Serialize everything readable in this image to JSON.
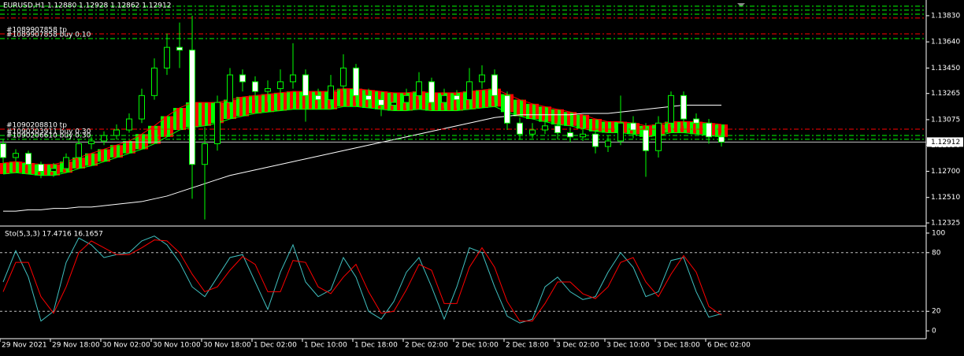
{
  "chart_data": [
    {
      "type": "candlestick",
      "title": "EURUSD,H1 1.12880 1.12928 1.12862 1.12912",
      "categories": [
        "29 Nov 2021",
        null,
        null,
        null,
        "29 Nov 18:00",
        null,
        null,
        null,
        "30 Nov 02:00",
        null,
        null,
        null,
        "30 Nov 10:00",
        null,
        null,
        null,
        "30 Nov 18:00",
        null,
        null,
        null,
        "1 Dec 02:00",
        null,
        null,
        null,
        "1 Dec 10:00",
        null,
        null,
        null,
        "1 Dec 18:00",
        null,
        null,
        null,
        "2 Dec 02:00",
        null,
        null,
        null,
        "2 Dec 10:00",
        null,
        null,
        null,
        "2 Dec 18:00",
        null,
        null,
        null,
        "3 Dec 02:00",
        null,
        null,
        null,
        "3 Dec 10:00",
        null,
        null,
        null,
        "3 Dec 18:00",
        null,
        null,
        null,
        "6 Dec 02:00",
        null
      ],
      "open": [
        1.129,
        1.128,
        1.1283,
        1.1275,
        1.127,
        1.1272,
        1.128,
        1.129,
        1.1292,
        1.1296,
        1.13,
        1.1308,
        1.1325,
        1.1345,
        1.136,
        1.1358,
        1.1275,
        1.129,
        1.132,
        1.134,
        1.1335,
        1.1328,
        1.133,
        1.1335,
        1.134,
        1.1325,
        1.1322,
        1.1332,
        1.1345,
        1.1325,
        1.1322,
        1.1318,
        1.132,
        1.1325,
        1.1335,
        1.132,
        1.1325,
        1.1322,
        1.1335,
        1.134,
        1.1325,
        1.1305,
        1.1297,
        1.13,
        1.1303,
        1.1298,
        1.1295,
        1.1297,
        1.1288,
        1.1292,
        1.1305,
        1.13,
        1.1285,
        1.1305,
        1.1325,
        1.1308,
        1.1305,
        1.1295
      ],
      "high": [
        1.1293,
        1.1286,
        1.1285,
        1.1277,
        1.1276,
        1.1283,
        1.1293,
        1.1295,
        1.1299,
        1.1304,
        1.1312,
        1.133,
        1.1352,
        1.137,
        1.1378,
        1.1383,
        1.1302,
        1.1325,
        1.1345,
        1.1344,
        1.1339,
        1.1336,
        1.1344,
        1.1363,
        1.1344,
        1.133,
        1.134,
        1.1355,
        1.1348,
        1.133,
        1.1326,
        1.1327,
        1.133,
        1.1342,
        1.1338,
        1.133,
        1.1329,
        1.1345,
        1.1347,
        1.1344,
        1.1328,
        1.1309,
        1.1305,
        1.1308,
        1.1306,
        1.1302,
        1.1301,
        1.13,
        1.1296,
        1.1325,
        1.131,
        1.1305,
        1.131,
        1.1328,
        1.1328,
        1.1312,
        1.1308,
        1.1298
      ],
      "low": [
        1.1276,
        1.1277,
        1.1268,
        1.1265,
        1.1266,
        1.127,
        1.1278,
        1.1286,
        1.1289,
        1.1293,
        1.1298,
        1.1305,
        1.1322,
        1.134,
        1.1345,
        1.125,
        1.1235,
        1.1285,
        1.1315,
        1.1328,
        1.1322,
        1.132,
        1.1326,
        1.133,
        1.1306,
        1.1315,
        1.1318,
        1.1328,
        1.132,
        1.1316,
        1.131,
        1.1314,
        1.1316,
        1.1322,
        1.1315,
        1.1316,
        1.1316,
        1.1318,
        1.133,
        1.132,
        1.13,
        1.1293,
        1.1294,
        1.1297,
        1.1293,
        1.1291,
        1.1292,
        1.1283,
        1.1284,
        1.1289,
        1.1294,
        1.1266,
        1.128,
        1.1302,
        1.1303,
        1.13,
        1.129,
        1.1288
      ],
      "close": [
        1.128,
        1.1283,
        1.1275,
        1.127,
        1.1272,
        1.128,
        1.129,
        1.1292,
        1.1296,
        1.13,
        1.1308,
        1.1325,
        1.1345,
        1.136,
        1.1358,
        1.1275,
        1.129,
        1.132,
        1.134,
        1.1335,
        1.1328,
        1.133,
        1.1335,
        1.134,
        1.1325,
        1.1322,
        1.1332,
        1.1345,
        1.1325,
        1.1322,
        1.1318,
        1.132,
        1.1325,
        1.1335,
        1.132,
        1.1325,
        1.1322,
        1.1335,
        1.134,
        1.1325,
        1.1305,
        1.1297,
        1.13,
        1.1303,
        1.1298,
        1.1295,
        1.1297,
        1.1288,
        1.1292,
        1.1305,
        1.13,
        1.1285,
        1.1305,
        1.1325,
        1.1308,
        1.1305,
        1.1295,
        1.12912
      ],
      "band_upper": [
        1.1276,
        1.1277,
        1.1276,
        1.1275,
        1.1275,
        1.1277,
        1.128,
        1.1283,
        1.1286,
        1.1289,
        1.1292,
        1.1297,
        1.1303,
        1.131,
        1.1316,
        1.132,
        1.132,
        1.132,
        1.1322,
        1.1324,
        1.1325,
        1.1326,
        1.1327,
        1.1328,
        1.1328,
        1.1328,
        1.1328,
        1.133,
        1.133,
        1.1329,
        1.1328,
        1.1327,
        1.1327,
        1.1328,
        1.1327,
        1.1327,
        1.1327,
        1.1328,
        1.1329,
        1.133,
        1.1326,
        1.1322,
        1.1319,
        1.1317,
        1.1315,
        1.1313,
        1.1311,
        1.1308,
        1.1306,
        1.1306,
        1.1305,
        1.1303,
        1.1304,
        1.1306,
        1.1306,
        1.1306,
        1.1305,
        1.1304
      ],
      "band_lower": [
        1.1268,
        1.1269,
        1.1268,
        1.1267,
        1.1267,
        1.1269,
        1.1272,
        1.1274,
        1.1277,
        1.128,
        1.1283,
        1.1286,
        1.129,
        1.1295,
        1.13,
        1.1302,
        1.1303,
        1.1305,
        1.1308,
        1.131,
        1.1312,
        1.1313,
        1.1314,
        1.1315,
        1.1315,
        1.1315,
        1.1315,
        1.1317,
        1.1317,
        1.1316,
        1.1315,
        1.1314,
        1.1314,
        1.1315,
        1.1314,
        1.1314,
        1.1314,
        1.1315,
        1.1316,
        1.1317,
        1.1313,
        1.131,
        1.1308,
        1.1306,
        1.1304,
        1.1303,
        1.1301,
        1.1299,
        1.1298,
        1.1298,
        1.1297,
        1.1295,
        1.1296,
        1.1298,
        1.1298,
        1.1297,
        1.1296,
        1.1295
      ],
      "ma": [
        1.1241,
        1.1241,
        1.1242,
        1.1242,
        1.1243,
        1.1243,
        1.1244,
        1.1244,
        1.1245,
        1.1246,
        1.1247,
        1.1248,
        1.125,
        1.1252,
        1.1255,
        1.1258,
        1.1261,
        1.1264,
        1.1267,
        1.1269,
        1.1271,
        1.1273,
        1.1275,
        1.1277,
        1.1279,
        1.1281,
        1.1283,
        1.1285,
        1.1287,
        1.1289,
        1.1291,
        1.1293,
        1.1295,
        1.1297,
        1.1299,
        1.1301,
        1.1303,
        1.1305,
        1.1307,
        1.1309,
        1.131,
        1.1311,
        1.1311,
        1.1311,
        1.1311,
        1.1311,
        1.1312,
        1.1312,
        1.1312,
        1.1313,
        1.1314,
        1.1315,
        1.1316,
        1.1317,
        1.1318,
        1.1318,
        1.1318,
        1.1318
      ],
      "ylim": [
        1.12308,
        1.13944
      ],
      "yticks": [
        {
          "value": 1.1383,
          "label": "1.13830"
        },
        {
          "value": 1.1364,
          "label": "1.13640"
        },
        {
          "value": 1.1345,
          "label": "1.13450"
        },
        {
          "value": 1.13265,
          "label": "1.13265"
        },
        {
          "value": 1.13075,
          "label": "1.13075"
        },
        {
          "value": 1.1289,
          "label": "1.12890"
        },
        {
          "value": 1.127,
          "label": "1.12700"
        },
        {
          "value": 1.1251,
          "label": "1.12510"
        },
        {
          "value": 1.12325,
          "label": "1.12325"
        }
      ],
      "bid": {
        "value": 1.12912,
        "label": "1.12912"
      },
      "order_lines": [
        {
          "price": 1.13899,
          "color": "#00ff00"
        },
        {
          "price": 1.1387,
          "color": "#00ff00"
        },
        {
          "price": 1.13841,
          "color": "#00ff00"
        },
        {
          "price": 1.13813,
          "color": "#ff0000"
        },
        {
          "price": 1.13698,
          "color": "#ff0000",
          "label": "#1089907858 tp"
        },
        {
          "price": 1.13664,
          "color": "#00ff00",
          "label": "#1089907858 buy 0.10"
        },
        {
          "price": 1.13006,
          "color": "#ff0000",
          "label": "#1090208810 tp"
        },
        {
          "price": 1.1296,
          "color": "#00ff00",
          "label": "#1090203911 buy 0.30"
        },
        {
          "price": 1.12932,
          "color": "#00ff00",
          "label": "#1090206610 buy 0.30"
        }
      ]
    },
    {
      "type": "line",
      "title": "Sto(5,3,3) 17.4716 16.1657",
      "series": [
        {
          "color": "#40c0c0",
          "values": [
            50,
            82,
            55,
            10,
            20,
            70,
            95,
            88,
            75,
            78,
            80,
            92,
            97,
            88,
            70,
            45,
            35,
            55,
            75,
            78,
            50,
            22,
            60,
            88,
            50,
            35,
            42,
            75,
            55,
            20,
            12,
            30,
            60,
            75,
            45,
            12,
            45,
            85,
            80,
            45,
            15,
            8,
            12,
            45,
            55,
            40,
            32,
            35,
            60,
            80,
            65,
            35,
            40,
            72,
            75,
            40,
            14,
            17.4716
          ]
        },
        {
          "color": "#ff0000",
          "values": [
            40,
            70,
            70,
            35,
            18,
            45,
            80,
            92,
            85,
            78,
            78,
            85,
            93,
            92,
            80,
            58,
            40,
            45,
            62,
            76,
            68,
            40,
            40,
            72,
            70,
            45,
            38,
            55,
            68,
            40,
            18,
            20,
            42,
            68,
            62,
            28,
            28,
            65,
            85,
            65,
            30,
            10,
            10,
            28,
            50,
            50,
            38,
            33,
            45,
            70,
            75,
            50,
            35,
            58,
            77,
            60,
            25,
            16.1657
          ]
        }
      ],
      "ylim": [
        -8,
        105.6
      ],
      "yticks": [
        0,
        20,
        80,
        100
      ],
      "levels": [
        20,
        80
      ]
    }
  ]
}
